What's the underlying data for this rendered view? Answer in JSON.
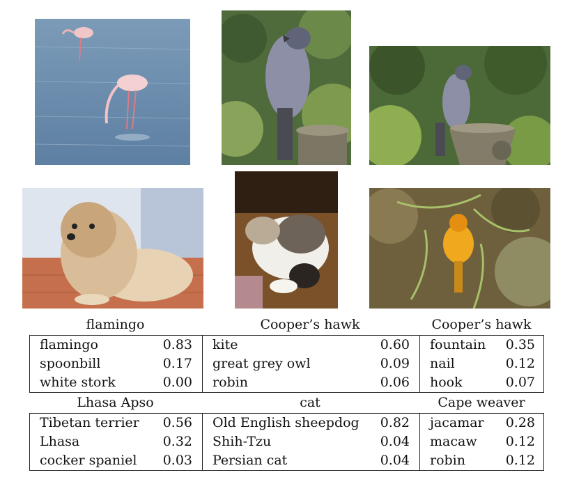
{
  "figure": {
    "images": [
      {
        "name": "flamingo-photo",
        "depicts": "flamingo"
      },
      {
        "name": "hawk-photo-closeup",
        "depicts": "hawk-closeup"
      },
      {
        "name": "hawk-photo-wide",
        "depicts": "hawk-wide"
      },
      {
        "name": "dog-photo",
        "depicts": "dog"
      },
      {
        "name": "cat-photo",
        "depicts": "cat"
      },
      {
        "name": "weaver-photo",
        "depicts": "weaver"
      }
    ],
    "groups": [
      {
        "titles": [
          "flamingo",
          "Cooper’s hawk",
          "Cooper’s hawk"
        ],
        "cells": [
          {
            "rows": [
              {
                "label": "flamingo",
                "value": "0.83"
              },
              {
                "label": "spoonbill",
                "value": "0.17"
              },
              {
                "label": "white stork",
                "value": "0.00"
              }
            ]
          },
          {
            "rows": [
              {
                "label": "kite",
                "value": "0.60"
              },
              {
                "label": "great grey owl",
                "value": "0.09"
              },
              {
                "label": "robin",
                "value": "0.06"
              }
            ]
          },
          {
            "rows": [
              {
                "label": "fountain",
                "value": "0.35"
              },
              {
                "label": "nail",
                "value": "0.12"
              },
              {
                "label": "hook",
                "value": "0.07"
              }
            ]
          }
        ]
      },
      {
        "titles": [
          "Lhasa Apso",
          "cat",
          "Cape weaver"
        ],
        "cells": [
          {
            "rows": [
              {
                "label": "Tibetan terrier",
                "value": "0.56"
              },
              {
                "label": "Lhasa",
                "value": "0.32"
              },
              {
                "label": "cocker spaniel",
                "value": "0.03"
              }
            ]
          },
          {
            "rows": [
              {
                "label": "Old English sheepdog",
                "value": "0.82"
              },
              {
                "label": "Shih-Tzu",
                "value": "0.04"
              },
              {
                "label": "Persian cat",
                "value": "0.04"
              }
            ]
          },
          {
            "rows": [
              {
                "label": "jacamar",
                "value": "0.28"
              },
              {
                "label": "macaw",
                "value": "0.12"
              },
              {
                "label": "robin",
                "value": "0.12"
              }
            ]
          }
        ]
      }
    ]
  }
}
